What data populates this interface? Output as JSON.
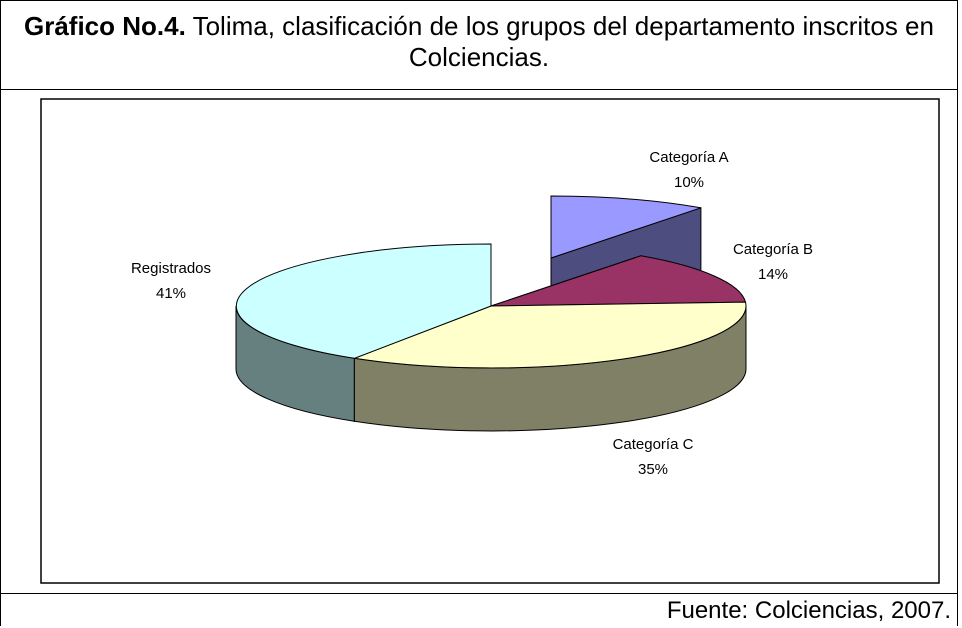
{
  "chart_data": {
    "type": "pie",
    "title_label": "Gráfico No.4.",
    "title": "Tolima, clasificación de los grupos del departamento inscritos en Colciencias.",
    "categories": [
      "Categoría A",
      "Categoría B",
      "Categoría C",
      "Registrados"
    ],
    "values": [
      10,
      14,
      35,
      41
    ],
    "value_labels": [
      "10%",
      "14%",
      "35%",
      "41%"
    ],
    "colors": [
      "#9999ff",
      "#993366",
      "#ffffcc",
      "#ccffff"
    ],
    "source": "Fuente: Colciencias, 2007."
  }
}
